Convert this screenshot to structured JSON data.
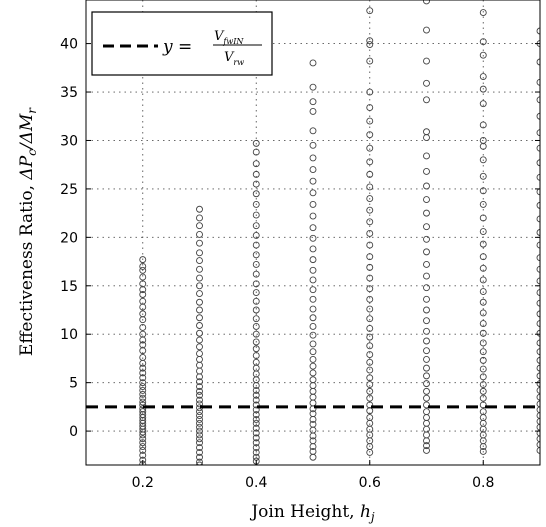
{
  "chart_data": {
    "type": "scatter",
    "xlabel_text": "Join Height, ",
    "xlabel_symbol": "h",
    "xlabel_sub": "j",
    "ylabel_text": "Effectiveness Ratio, ",
    "ylabel_symbol": "ΔP",
    "ylabel_sub1": "c",
    "ylabel_mid": "/ΔM",
    "ylabel_sub2": "r",
    "xlim": [
      0.1,
      0.9
    ],
    "ylim": [
      -3.5,
      44.5
    ],
    "xticks": [
      0.2,
      0.4,
      0.6,
      0.8
    ],
    "yticks": [
      0,
      5,
      10,
      15,
      20,
      25,
      30,
      35,
      40
    ],
    "xtick_labels": [
      "0.2",
      "0.4",
      "0.6",
      "0.8"
    ],
    "ytick_labels": [
      "0",
      "5",
      "10",
      "15",
      "20",
      "25",
      "30",
      "35",
      "40"
    ],
    "grid": true,
    "legend": {
      "placement": "top-left",
      "entry_prefix": "y =",
      "numerator": "V",
      "numerator_sub": "fwIN",
      "denominator": "V",
      "denominator_sub": "rw"
    },
    "reference_line": {
      "y": 2.5,
      "style": "dashed",
      "color": "#000000"
    },
    "series": [
      {
        "marker": "circle",
        "color": "#444444",
        "columns": [
          {
            "x": 0.2,
            "values": [
              17.7,
              17.0,
              16.6,
              15.9,
              15.2,
              14.6,
              14.1,
              13.4,
              12.8,
              12.1,
              11.5,
              10.7,
              10.0,
              9.4,
              8.9,
              8.3,
              7.6,
              7.0,
              6.5,
              6.0,
              5.5,
              5.0,
              4.6,
              4.2,
              3.8,
              3.4,
              3.0,
              2.7,
              2.3,
              2.0,
              1.7,
              1.4,
              1.1,
              0.8,
              0.5,
              0.2,
              -0.1,
              -0.4,
              -0.8,
              -1.2,
              -1.6,
              -2.0,
              -2.5,
              -3.0,
              -3.4
            ]
          },
          {
            "x": 0.3,
            "values": [
              22.9,
              22.0,
              21.2,
              20.3,
              19.4,
              18.4,
              17.6,
              16.7,
              15.8,
              15.0,
              14.2,
              13.3,
              12.5,
              11.7,
              10.9,
              10.1,
              9.4,
              8.7,
              8.0,
              7.4,
              6.8,
              6.2,
              5.6,
              5.1,
              4.6,
              4.1,
              3.7,
              3.2,
              2.8,
              2.4,
              2.0,
              1.6,
              1.2,
              0.8,
              0.4,
              0.0,
              -0.4,
              -0.8,
              -1.2,
              -1.7,
              -2.2,
              -2.7,
              -3.2,
              -3.5
            ]
          },
          {
            "x": 0.4,
            "values": [
              29.7,
              28.8,
              27.6,
              26.5,
              25.5,
              24.5,
              23.4,
              22.3,
              21.2,
              20.2,
              19.2,
              18.2,
              17.2,
              16.2,
              15.2,
              14.3,
              13.4,
              12.5,
              11.6,
              10.8,
              10.0,
              9.2,
              8.5,
              7.8,
              7.1,
              6.5,
              5.9,
              5.3,
              4.7,
              4.2,
              3.7,
              3.2,
              2.7,
              2.2,
              1.7,
              1.2,
              0.8,
              0.3,
              -0.2,
              -0.7,
              -1.2,
              -1.7,
              -2.2,
              -2.7,
              -3.1
            ]
          },
          {
            "x": 0.5,
            "values": [
              38.0,
              35.5,
              34.0,
              33.0,
              31.0,
              29.5,
              28.2,
              27.0,
              25.8,
              24.6,
              23.4,
              22.2,
              21.0,
              19.9,
              18.8,
              17.7,
              16.6,
              15.6,
              14.6,
              13.6,
              12.6,
              11.7,
              10.8,
              9.9,
              9.0,
              8.2,
              7.4,
              6.7,
              6.0,
              5.3,
              4.7,
              4.1,
              3.5,
              2.9,
              2.3,
              1.8,
              1.2,
              0.7,
              0.1,
              -0.5,
              -1.0,
              -1.6,
              -2.1,
              -2.7
            ]
          },
          {
            "x": 0.6,
            "values": [
              43.4,
              40.3,
              39.9,
              38.2,
              35.0,
              33.4,
              32.0,
              30.6,
              29.2,
              27.8,
              26.5,
              25.2,
              24.0,
              22.8,
              21.6,
              20.4,
              19.2,
              18.0,
              16.9,
              15.8,
              14.7,
              13.6,
              12.6,
              11.6,
              10.6,
              9.7,
              8.8,
              7.9,
              7.1,
              6.3,
              5.5,
              4.8,
              4.1,
              3.4,
              2.7,
              2.1,
              1.4,
              0.8,
              0.2,
              -0.4,
              -1.0,
              -1.6,
              -2.2
            ]
          },
          {
            "x": 0.7,
            "values": [
              44.4,
              41.4,
              38.2,
              35.9,
              34.2,
              30.9,
              30.3,
              28.4,
              26.8,
              25.3,
              23.9,
              22.5,
              21.1,
              19.8,
              18.5,
              17.2,
              16.0,
              14.8,
              13.6,
              12.5,
              11.4,
              10.3,
              9.3,
              8.3,
              7.4,
              6.5,
              5.7,
              4.9,
              4.1,
              3.4,
              2.7,
              2.0,
              1.4,
              0.8,
              0.2,
              -0.4,
              -1.0,
              -1.5,
              -2.0
            ]
          },
          {
            "x": 0.8,
            "values": [
              43.2,
              40.2,
              38.8,
              36.6,
              35.3,
              33.8,
              31.6,
              30.0,
              29.4,
              28.0,
              26.3,
              24.8,
              23.4,
              22.0,
              20.6,
              19.3,
              18.0,
              16.8,
              15.6,
              14.4,
              13.3,
              12.2,
              11.1,
              10.1,
              9.1,
              8.2,
              7.3,
              6.4,
              5.6,
              4.8,
              4.1,
              3.4,
              2.7,
              2.0,
              1.4,
              0.8,
              0.2,
              -0.4,
              -1.0,
              -1.6,
              -2.1
            ]
          },
          {
            "x": 0.9,
            "values": [
              41.3,
              40.0,
              38.1,
              36.0,
              34.2,
              32.5,
              30.8,
              29.2,
              27.7,
              26.2,
              24.7,
              23.3,
              21.9,
              20.5,
              19.2,
              17.9,
              16.7,
              15.5,
              14.3,
              13.2,
              12.1,
              11.1,
              10.1,
              9.1,
              8.2,
              7.3,
              6.5,
              5.7,
              4.9,
              4.2,
              3.5,
              2.8,
              2.2,
              1.6,
              1.0,
              0.4,
              -0.2,
              -0.8,
              -1.4,
              -2.0
            ]
          }
        ]
      }
    ]
  }
}
